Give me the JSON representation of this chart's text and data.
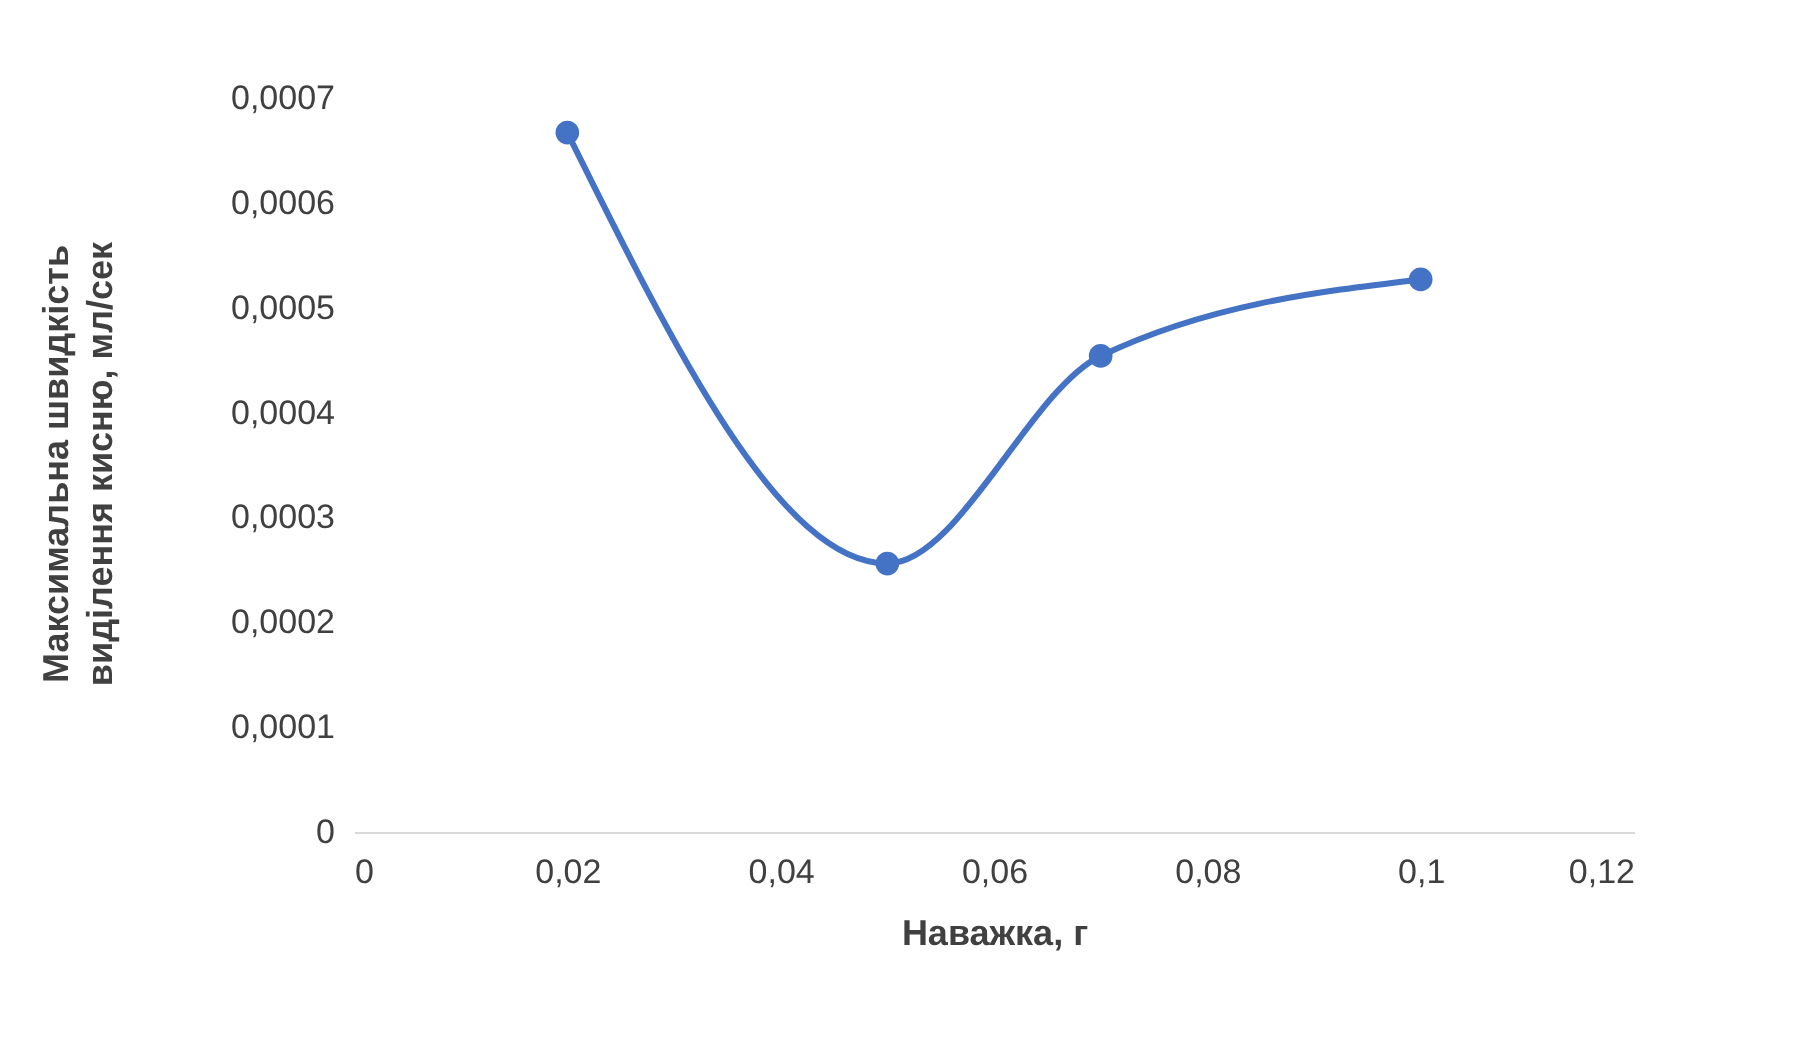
{
  "chart_data": {
    "type": "line",
    "xlabel": "Наважка, г",
    "ylabel": "Максимальна швидкість виділення кисню, мл/сек",
    "x": [
      0.02,
      0.05,
      0.07,
      0.1
    ],
    "series": [
      {
        "color": "#4472c4",
        "values": [
          0.000667,
          0.000256,
          0.000454,
          0.000527
        ]
      }
    ],
    "xlim": [
      0,
      0.12
    ],
    "xticks": [
      {
        "value": 0,
        "label": "0"
      },
      {
        "value": 0.02,
        "label": "0,02"
      },
      {
        "value": 0.04,
        "label": "0,04"
      },
      {
        "value": 0.06,
        "label": "0,06"
      },
      {
        "value": 0.08,
        "label": "0,08"
      },
      {
        "value": 0.1,
        "label": "0,1"
      },
      {
        "value": 0.12,
        "label": "0,12"
      }
    ],
    "ylim": [
      0,
      0.0007
    ],
    "yticks": [
      {
        "value": 0,
        "label": "0"
      },
      {
        "value": 0.0001,
        "label": "0,0001"
      },
      {
        "value": 0.0002,
        "label": "0,0002"
      },
      {
        "value": 0.0003,
        "label": "0,0003"
      },
      {
        "value": 0.0004,
        "label": "0,0004"
      },
      {
        "value": 0.0005,
        "label": "0,0005"
      },
      {
        "value": 0.0006,
        "label": "0,0006"
      },
      {
        "value": 0.0007,
        "label": "0,0007"
      }
    ],
    "grid": false,
    "marker": "circle",
    "line_style": "solid"
  }
}
